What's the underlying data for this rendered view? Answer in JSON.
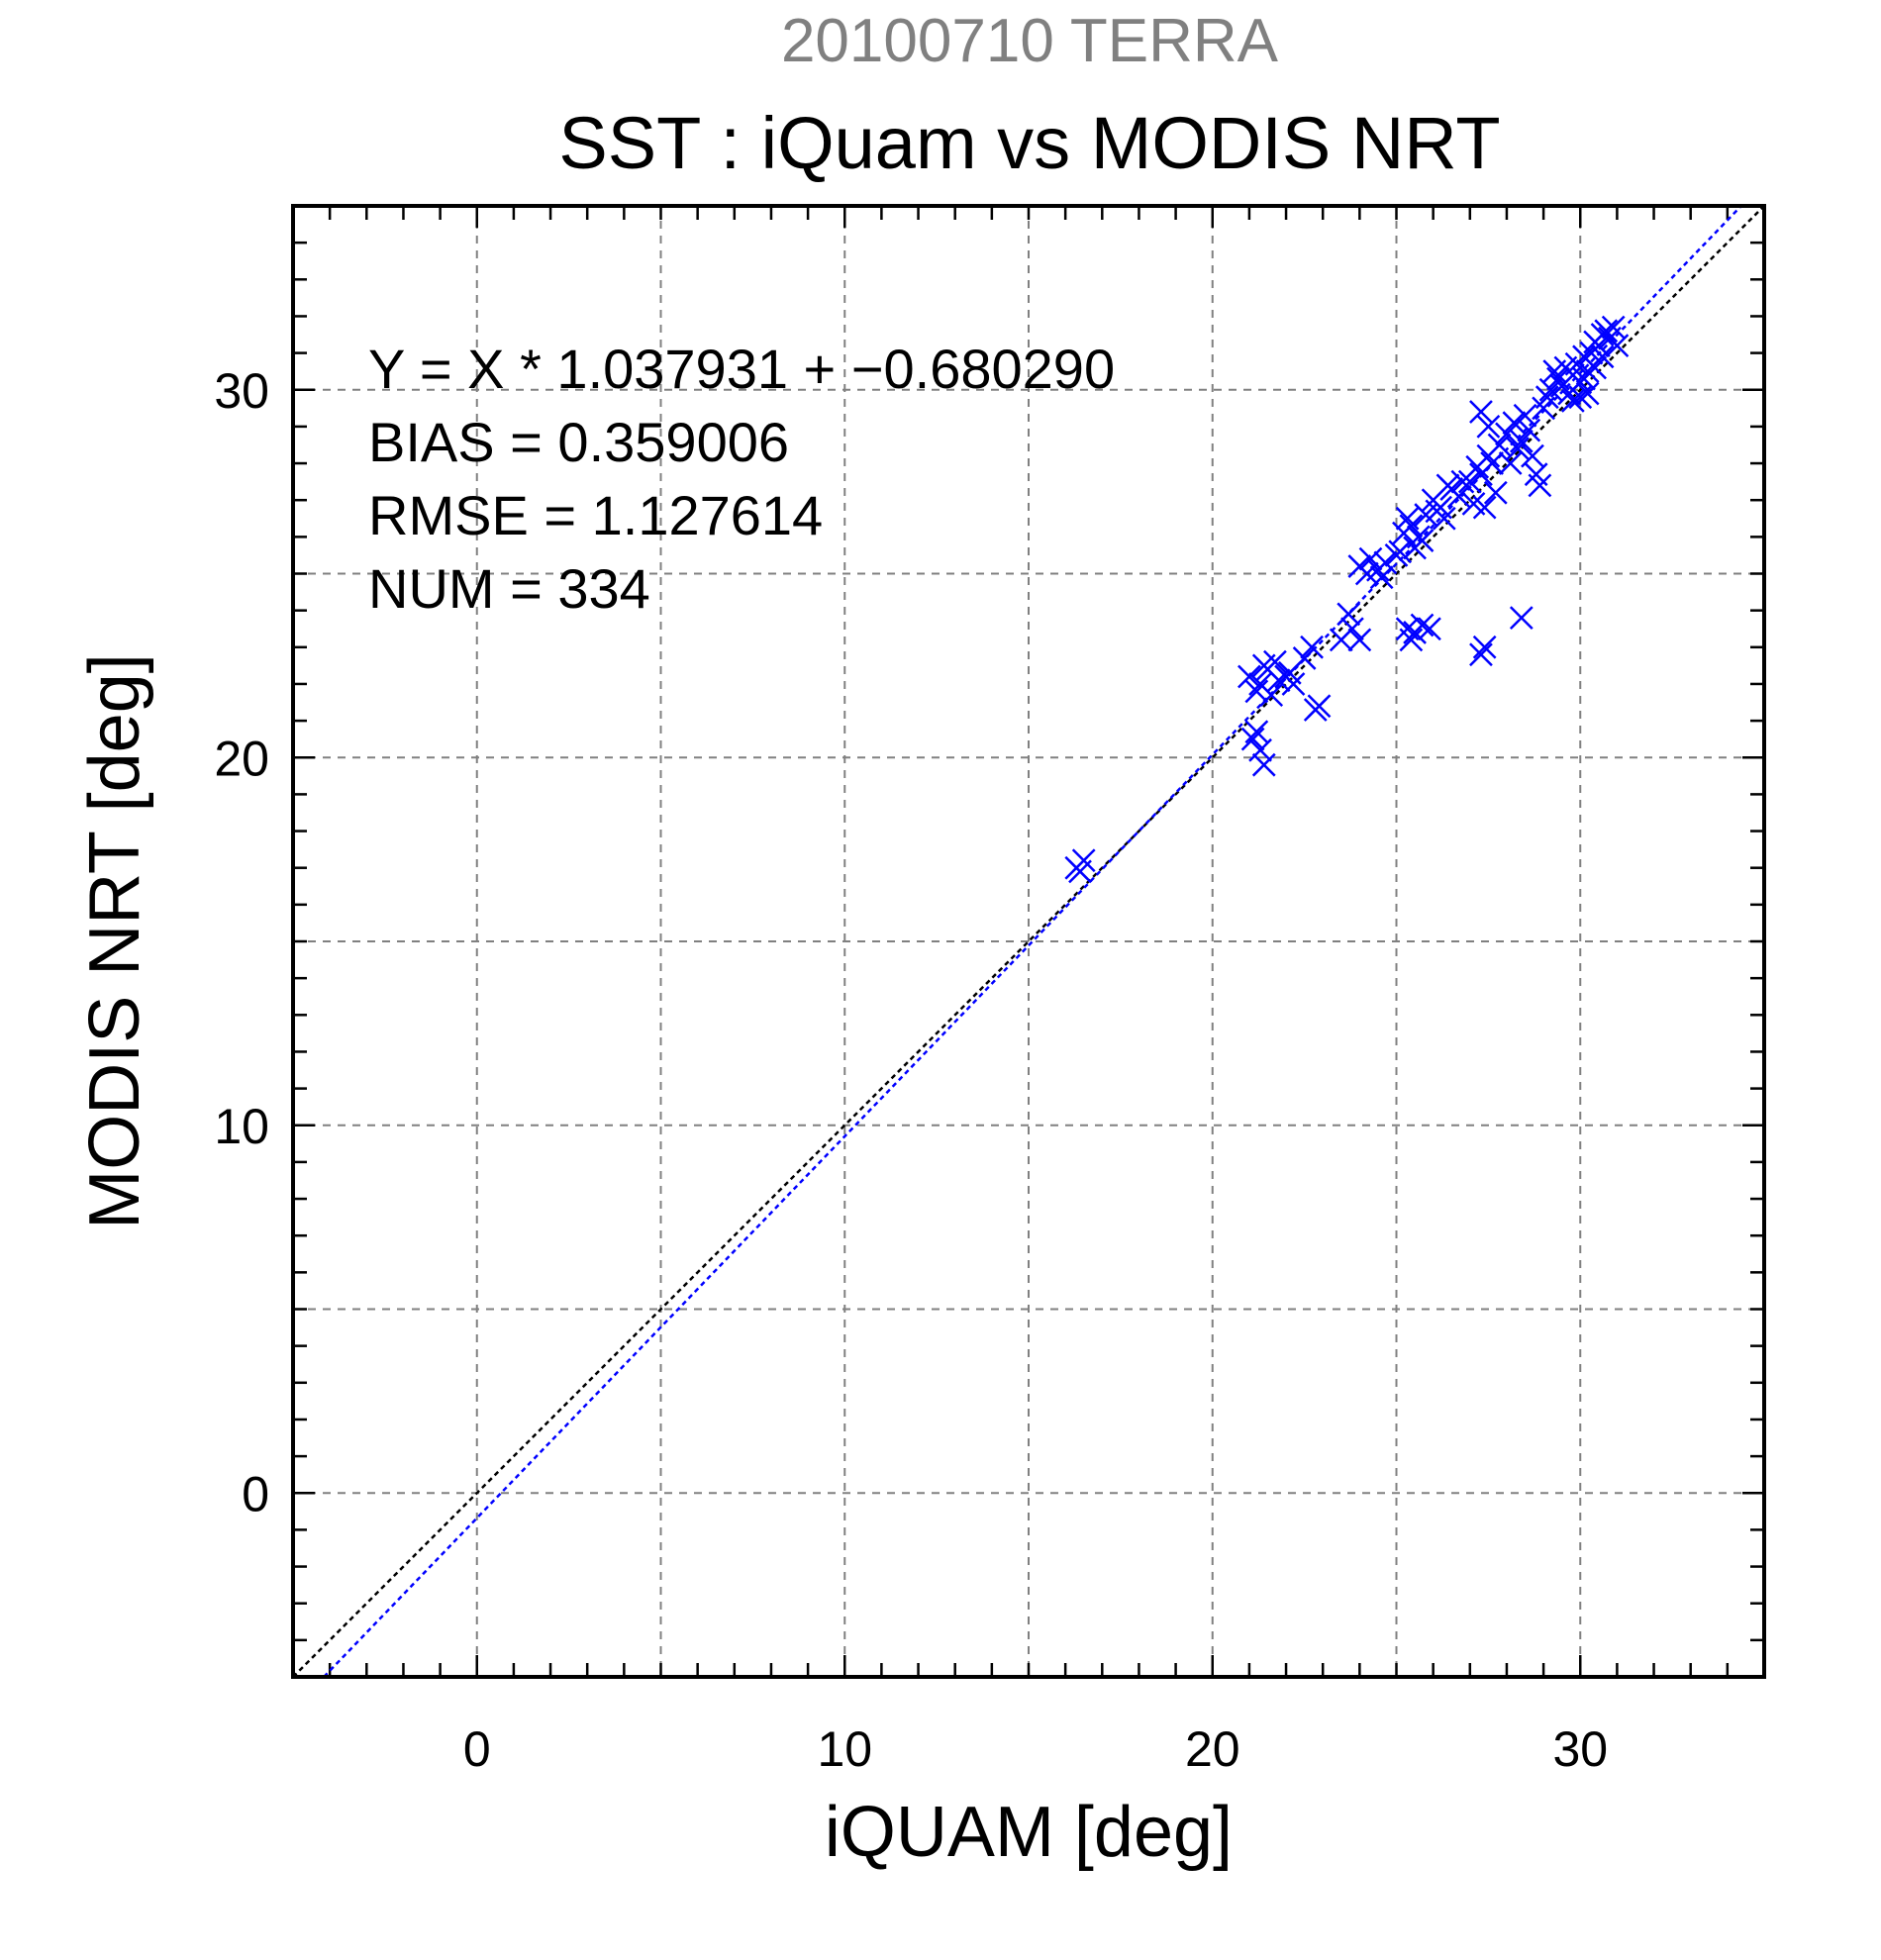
{
  "chart_data": {
    "type": "scatter",
    "suptitle": "20100710 TERRA",
    "title": "SST : iQuam vs MODIS NRT",
    "xlabel": "iQUAM [deg]",
    "ylabel": "MODIS NRT [deg]",
    "xlim": [
      -5,
      35
    ],
    "ylim": [
      -5,
      35
    ],
    "x_ticks": [
      0,
      10,
      20,
      30
    ],
    "y_ticks": [
      0,
      10,
      20,
      30
    ],
    "x_tick_labels": [
      "0",
      "10",
      "20",
      "30"
    ],
    "y_tick_labels": [
      "0",
      "10",
      "20",
      "30"
    ],
    "grid": true,
    "marker": "x",
    "colors": {
      "points": "#0000ff",
      "fit_line": "#0000ff",
      "identity_line": "#000000",
      "grid": "#808080"
    },
    "stats": [
      "Y = X * 1.037931 + −0.680290",
      "BIAS = 0.359006",
      "RMSE = 1.127614",
      "NUM = 334"
    ],
    "fit": {
      "slope": 1.037931,
      "intercept": -0.68029
    },
    "identity": {
      "slope": 1,
      "intercept": 0
    },
    "points": [
      [
        16.3,
        17.0
      ],
      [
        16.5,
        17.2
      ],
      [
        16.4,
        16.9
      ],
      [
        21.0,
        22.2
      ],
      [
        21.2,
        21.8
      ],
      [
        21.5,
        22.4
      ],
      [
        21.8,
        22.1
      ],
      [
        21.3,
        22.0
      ],
      [
        21.6,
        21.7
      ],
      [
        22.0,
        22.2
      ],
      [
        22.2,
        22.0
      ],
      [
        21.4,
        22.5
      ],
      [
        21.7,
        22.6
      ],
      [
        22.1,
        22.3
      ],
      [
        21.2,
        20.7
      ],
      [
        21.3,
        20.2
      ],
      [
        21.4,
        19.8
      ],
      [
        21.1,
        20.5
      ],
      [
        22.5,
        22.7
      ],
      [
        22.7,
        23.0
      ],
      [
        22.9,
        21.4
      ],
      [
        22.8,
        21.3
      ],
      [
        23.5,
        23.2
      ],
      [
        23.8,
        23.5
      ],
      [
        24.0,
        23.2
      ],
      [
        23.7,
        23.9
      ],
      [
        24.0,
        25.2
      ],
      [
        24.3,
        25.4
      ],
      [
        24.5,
        25.1
      ],
      [
        24.7,
        25.3
      ],
      [
        24.2,
        25.0
      ],
      [
        24.6,
        24.9
      ],
      [
        25.0,
        25.5
      ],
      [
        25.2,
        26.1
      ],
      [
        25.3,
        26.5
      ],
      [
        25.5,
        25.7
      ],
      [
        25.4,
        26.3
      ],
      [
        25.7,
        25.9
      ],
      [
        25.8,
        26.6
      ],
      [
        25.6,
        26.0
      ],
      [
        25.1,
        25.6
      ],
      [
        25.3,
        23.5
      ],
      [
        25.5,
        23.4
      ],
      [
        25.7,
        23.6
      ],
      [
        25.9,
        23.5
      ],
      [
        25.4,
        23.2
      ],
      [
        26.0,
        27.0
      ],
      [
        26.2,
        26.8
      ],
      [
        26.5,
        27.3
      ],
      [
        26.3,
        26.5
      ],
      [
        26.7,
        27.1
      ],
      [
        26.4,
        27.4
      ],
      [
        26.8,
        27.5
      ],
      [
        26.1,
        26.7
      ],
      [
        27.0,
        27.5
      ],
      [
        27.2,
        27.9
      ],
      [
        27.5,
        28.2
      ],
      [
        27.3,
        27.7
      ],
      [
        27.8,
        28.5
      ],
      [
        27.6,
        28.0
      ],
      [
        27.1,
        26.9
      ],
      [
        27.4,
        26.8
      ],
      [
        27.7,
        27.2
      ],
      [
        27.3,
        29.4
      ],
      [
        27.5,
        29.0
      ],
      [
        27.4,
        23.0
      ],
      [
        27.3,
        22.8
      ],
      [
        28.0,
        28.8
      ],
      [
        28.2,
        29.1
      ],
      [
        28.4,
        28.6
      ],
      [
        28.6,
        28.9
      ],
      [
        28.3,
        28.4
      ],
      [
        28.5,
        29.3
      ],
      [
        28.7,
        28.2
      ],
      [
        28.8,
        27.7
      ],
      [
        28.9,
        27.4
      ],
      [
        28.1,
        28.0
      ],
      [
        28.4,
        23.8
      ],
      [
        29.0,
        29.5
      ],
      [
        29.2,
        30.0
      ],
      [
        29.4,
        30.3
      ],
      [
        29.1,
        29.8
      ],
      [
        29.3,
        30.5
      ],
      [
        29.5,
        30.1
      ],
      [
        29.6,
        30.6
      ],
      [
        29.7,
        29.9
      ],
      [
        29.8,
        30.4
      ],
      [
        29.9,
        30.7
      ],
      [
        30.0,
        30.2
      ],
      [
        30.1,
        30.9
      ],
      [
        30.2,
        30.5
      ],
      [
        30.3,
        31.0
      ],
      [
        30.4,
        30.6
      ],
      [
        30.5,
        31.2
      ],
      [
        30.2,
        29.9
      ],
      [
        30.6,
        31.5
      ],
      [
        30.4,
        31.3
      ],
      [
        30.1,
        30.3
      ],
      [
        30.0,
        29.8
      ],
      [
        29.8,
        29.7
      ],
      [
        30.7,
        31.6
      ],
      [
        30.8,
        31.4
      ],
      [
        31.0,
        31.2
      ],
      [
        30.9,
        31.7
      ],
      [
        30.6,
        30.9
      ]
    ]
  }
}
